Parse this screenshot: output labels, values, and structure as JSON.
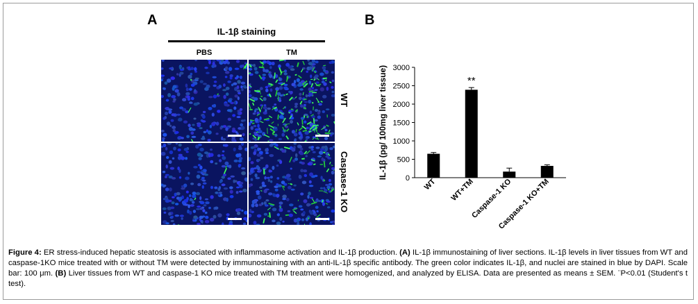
{
  "panel_a": {
    "letter": "A",
    "title": "IL-1β staining",
    "columns": [
      "PBS",
      "TM"
    ],
    "rows": [
      "WT",
      "Caspase-1 KO"
    ]
  },
  "panel_b": {
    "letter": "B"
  },
  "chart_data": {
    "type": "bar",
    "categories": [
      "WT",
      "WT+TM",
      "Caspase-1 KO",
      "Caspase-1 KO+TM"
    ],
    "values": [
      650,
      2390,
      165,
      320
    ],
    "errors": [
      35,
      60,
      95,
      30
    ],
    "annotations": [
      {
        "category": "WT+TM",
        "text": "**"
      }
    ],
    "ylabel": "IL-1β (pg/ 100mg liver tissue)",
    "xlabel": "",
    "ylim": [
      0,
      3000
    ],
    "yticks": [
      0,
      500,
      1000,
      1500,
      2000,
      2500,
      3000
    ],
    "bar_color": "#000000",
    "grid": false
  },
  "caption": {
    "label": "Figure 4:",
    "t1": " ER stress-induced hepatic steatosis is associated with inflammasome activation and IL-1β production. ",
    "a_ref": "(A)",
    "t2": " IL-1β immunostaining of liver sections. IL-1β levels in liver tissues from WT and caspase-1KO mice treated with or without TM were detected by immunostaining with an anti-IL-1β specific antibody. The green color indicates IL-1β, and nuclei are stained in blue by DAPI. Scale bar: 100 μm. ",
    "b_ref": "(B)",
    "t3": " Liver tissues from WT and caspase-1 KO mice treated with TM treatment were homogenized, and analyzed by ELISA. Data are presented as means ± SEM. ¨P<0.01 (Student's t test)."
  }
}
